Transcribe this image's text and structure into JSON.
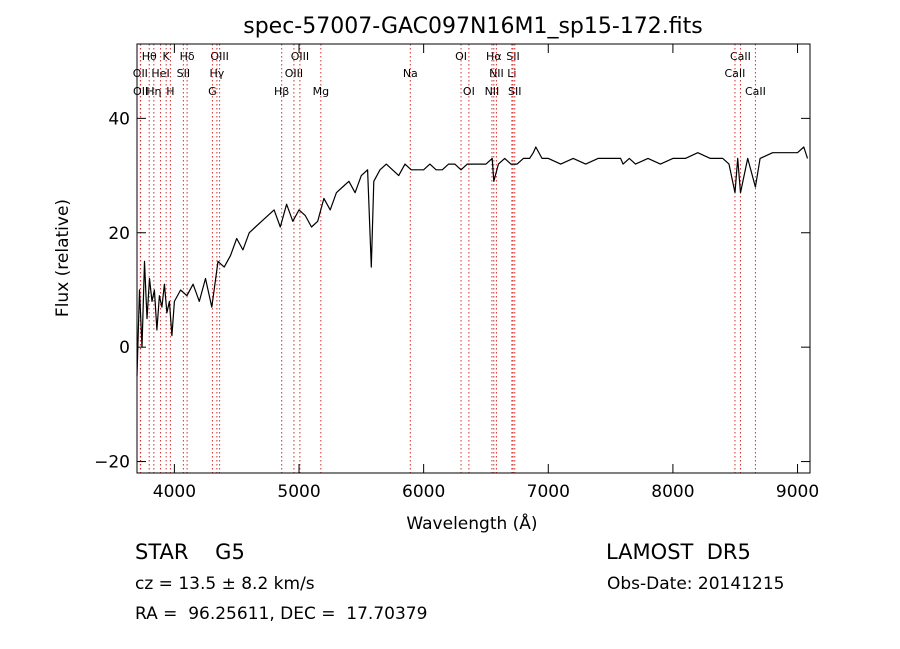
{
  "chart_data": {
    "type": "line",
    "title": "spec-57007-GAC097N16M1_sp15-172.fits",
    "xlabel": "Wavelength (Å)",
    "ylabel": "Flux (relative)",
    "xlim": [
      3700,
      9100
    ],
    "ylim": [
      -22,
      53
    ],
    "xticks": [
      4000,
      5000,
      6000,
      7000,
      8000,
      9000
    ],
    "yticks": [
      -20,
      0,
      20,
      40
    ],
    "grid": false,
    "line_color": "#000000",
    "marker_color": "#cc3333",
    "series": [
      {
        "x": [
          3700,
          3720,
          3740,
          3760,
          3780,
          3800,
          3820,
          3840,
          3860,
          3880,
          3900,
          3920,
          3940,
          3960,
          3980,
          4000,
          4050,
          4100,
          4150,
          4200,
          4250,
          4300,
          4350,
          4400,
          4450,
          4500,
          4550,
          4600,
          4650,
          4700,
          4750,
          4800,
          4850,
          4900,
          4950,
          5000,
          5050,
          5100,
          5150,
          5200,
          5250,
          5300,
          5350,
          5400,
          5450,
          5500,
          5550,
          5580,
          5600,
          5650,
          5700,
          5750,
          5800,
          5850,
          5900,
          5950,
          6000,
          6050,
          6100,
          6150,
          6200,
          6250,
          6300,
          6350,
          6400,
          6450,
          6500,
          6550,
          6563,
          6600,
          6650,
          6700,
          6750,
          6800,
          6850,
          6880,
          6900,
          6950,
          7000,
          7100,
          7200,
          7300,
          7400,
          7500,
          7550,
          7580,
          7600,
          7650,
          7700,
          7800,
          7900,
          8000,
          8100,
          8200,
          8300,
          8400,
          8450,
          8498,
          8520,
          8542,
          8600,
          8662,
          8700,
          8800,
          8900,
          9000,
          9050,
          9080
        ],
        "y": [
          -5,
          10,
          0,
          15,
          5,
          12,
          8,
          10,
          3,
          9,
          7,
          11,
          6,
          8,
          2,
          8,
          10,
          9,
          11,
          8,
          12,
          7,
          15,
          14,
          16,
          19,
          17,
          20,
          21,
          22,
          23,
          24,
          21,
          25,
          22,
          24,
          23,
          21,
          22,
          26,
          24,
          27,
          28,
          29,
          27,
          30,
          31,
          14,
          29,
          31,
          32,
          31,
          30,
          32,
          31,
          31,
          31,
          32,
          31,
          31,
          32,
          32,
          31,
          32,
          32,
          32,
          32,
          33,
          29,
          32,
          33,
          32,
          32,
          33,
          33,
          34,
          35,
          33,
          33,
          32,
          33,
          32,
          33,
          33,
          33,
          33,
          32,
          33,
          32,
          33,
          32,
          33,
          33,
          34,
          33,
          33,
          32,
          27,
          33,
          27,
          33,
          28,
          33,
          34,
          34,
          34,
          35,
          33
        ]
      }
    ],
    "line_markers": [
      {
        "label": "Hθ",
        "x": 3798,
        "row": 1
      },
      {
        "label": "K",
        "x": 3934,
        "row": 1
      },
      {
        "label": "Hδ",
        "x": 4102,
        "row": 1
      },
      {
        "label": "OIII",
        "x": 4363,
        "row": 1
      },
      {
        "label": "OIII",
        "x": 5007,
        "row": 1
      },
      {
        "label": "OI",
        "x": 6300,
        "row": 1
      },
      {
        "label": "Hα",
        "x": 6563,
        "row": 1
      },
      {
        "label": "SII",
        "x": 6717,
        "row": 1
      },
      {
        "label": "CaII",
        "x": 8542,
        "row": 1
      },
      {
        "label": "OII",
        "x": 3727,
        "row": 2
      },
      {
        "label": "HeI",
        "x": 3889,
        "row": 2
      },
      {
        "label": "SII",
        "x": 4072,
        "row": 2
      },
      {
        "label": "Hγ",
        "x": 4341,
        "row": 2
      },
      {
        "label": "OIII",
        "x": 4959,
        "row": 2
      },
      {
        "label": "Na",
        "x": 5893,
        "row": 2
      },
      {
        "label": "NII",
        "x": 6584,
        "row": 2
      },
      {
        "label": "Li",
        "x": 6708,
        "row": 2
      },
      {
        "label": "CaII",
        "x": 8498,
        "row": 2
      },
      {
        "label": "OII",
        "x": 3729,
        "row": 3
      },
      {
        "label": "Hη",
        "x": 3835,
        "row": 3
      },
      {
        "label": "H",
        "x": 3968,
        "row": 3
      },
      {
        "label": "G",
        "x": 4305,
        "row": 3
      },
      {
        "label": "Hβ",
        "x": 4861,
        "row": 3
      },
      {
        "label": "Mg",
        "x": 5175,
        "row": 3
      },
      {
        "label": "OI",
        "x": 6363,
        "row": 3
      },
      {
        "label": "NII",
        "x": 6548,
        "row": 3
      },
      {
        "label": "SII",
        "x": 6731,
        "row": 3
      },
      {
        "label": "CaII",
        "x": 8662,
        "row": 3
      }
    ]
  },
  "info": {
    "class_text": "STAR    G5",
    "survey_text": "LAMOST  DR5",
    "cz_text": "cz = 13.5 ± 8.2 km/s",
    "obs_text": "Obs-Date: 20141215",
    "radec_text": "RA =  96.25611, DEC =  17.70379"
  }
}
